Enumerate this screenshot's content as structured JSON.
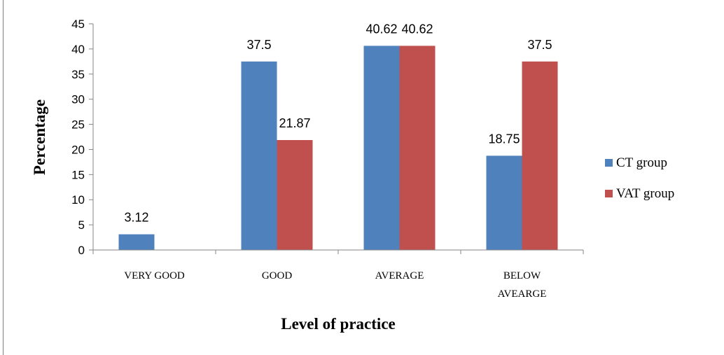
{
  "chart_data": {
    "type": "bar",
    "title": "",
    "xlabel": "Level of practice",
    "ylabel": "Percentage",
    "categories": [
      [
        "VERY GOOD"
      ],
      [
        "GOOD"
      ],
      [
        "AVERAGE"
      ],
      [
        "BELOW",
        "AVEARGE"
      ]
    ],
    "series": [
      {
        "name": "CT group",
        "color": "#4f81bd",
        "values": [
          3.12,
          37.5,
          40.62,
          18.75
        ]
      },
      {
        "name": "VAT group",
        "color": "#c0504d",
        "values": [
          null,
          21.87,
          40.62,
          37.5
        ]
      }
    ],
    "ylim": [
      0,
      45
    ],
    "yticks": [
      0,
      5,
      10,
      15,
      20,
      25,
      30,
      35,
      40,
      45
    ],
    "grid": false,
    "legend": "right"
  }
}
